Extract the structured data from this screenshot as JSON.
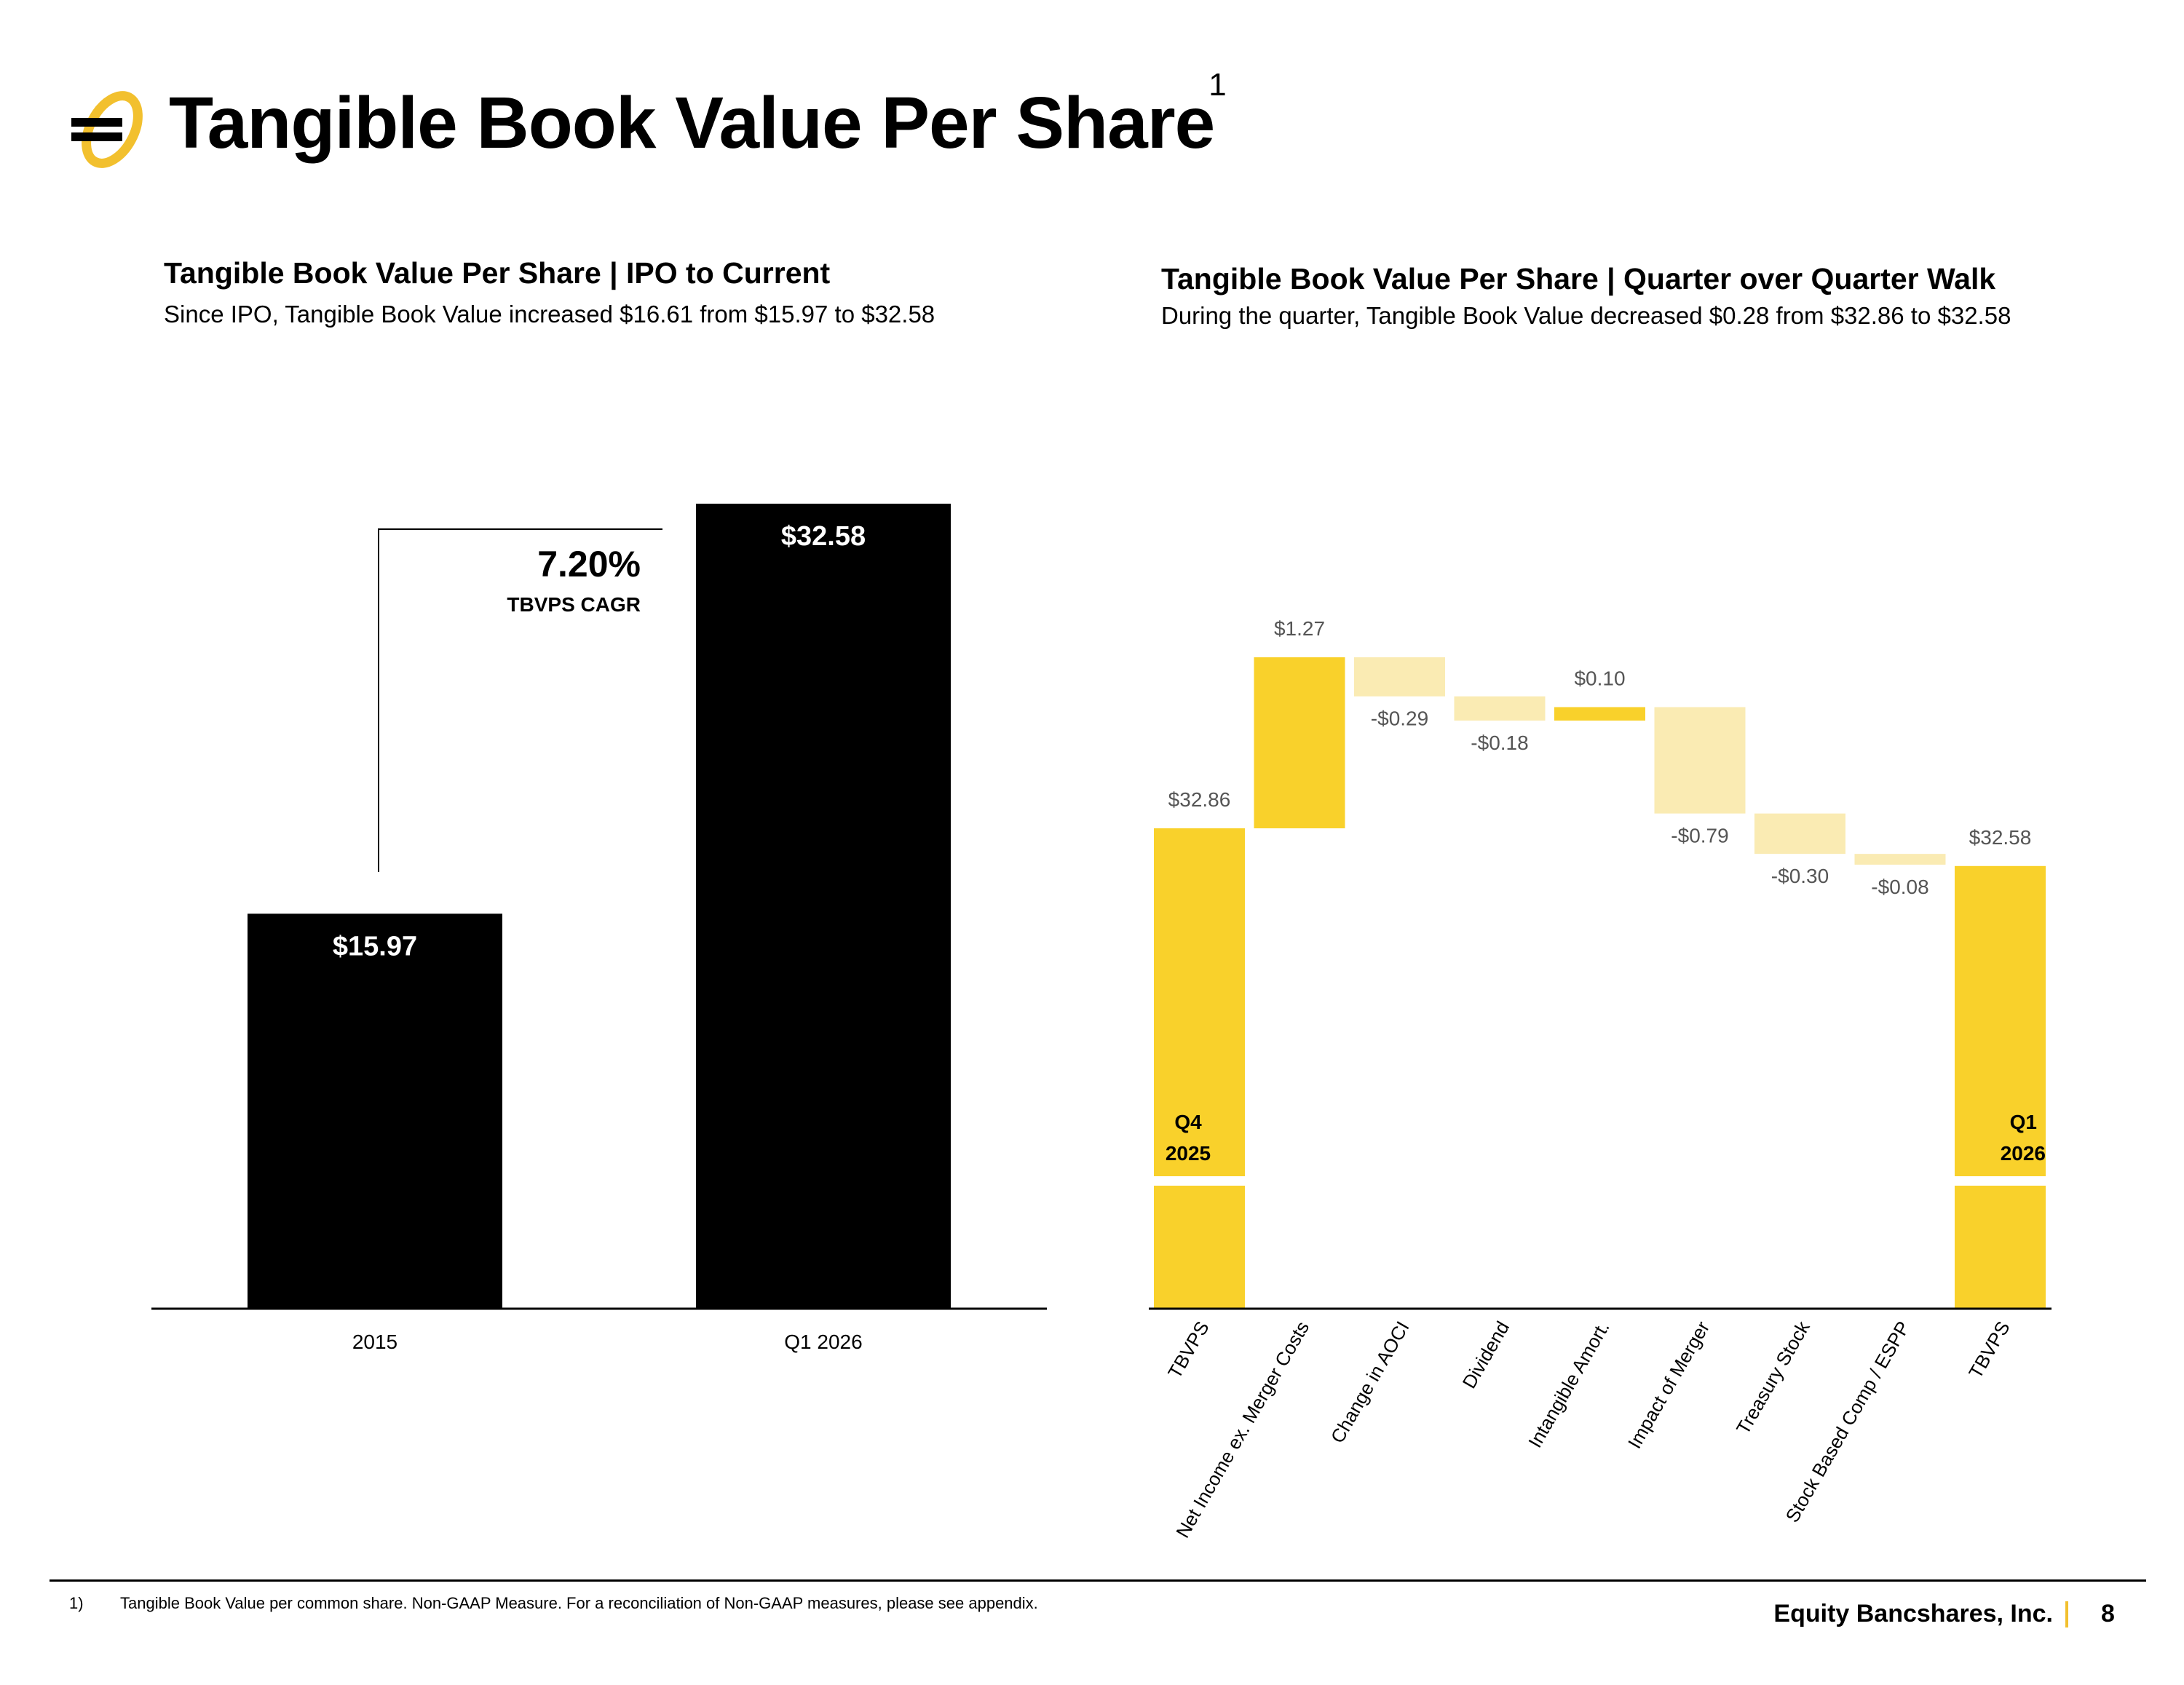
{
  "header": {
    "title": "Tangible Book Value Per Share",
    "title_sup": "1",
    "logo_icon": "equity-bank-logo-icon",
    "brand_color": "#F9D12B"
  },
  "left_chart": {
    "title": "Tangible Book Value Per Share | IPO to Current",
    "subtitle": "Since IPO, Tangible Book Value increased $16.61 from $15.97 to $32.58",
    "cagr_value": "7.20%",
    "cagr_label": "TBVPS CAGR"
  },
  "right_chart": {
    "title": "Tangible Book Value Per Share | Quarter over Quarter Walk",
    "subtitle": "During the quarter, Tangible Book Value decreased $0.28 from $32.86 to $32.58",
    "start_period": [
      "Q4",
      "2025"
    ],
    "end_period": [
      "Q1",
      "2026"
    ]
  },
  "chart_data": [
    {
      "type": "bar",
      "categories": [
        "2015",
        "Q1 2026"
      ],
      "values": [
        15.97,
        32.58
      ],
      "labels": [
        "$15.97",
        "$32.58"
      ],
      "bar_color": "#000000",
      "ylim": [
        0,
        32.58
      ]
    },
    {
      "type": "waterfall",
      "categories": [
        "TBVPS",
        "Net Income ex. Merger Costs",
        "Change in AOCI",
        "Dividend",
        "Intangible Amort.",
        "Impact of Merger",
        "Treasury Stock",
        "Stock Based Comp / ESPP",
        "TBVPS"
      ],
      "values": [
        32.86,
        1.27,
        -0.29,
        -0.18,
        0.1,
        -0.79,
        -0.3,
        -0.08,
        32.58
      ],
      "labels": [
        "$32.86",
        "$1.27",
        "-$0.29",
        "-$0.18",
        "$0.10",
        "-$0.79",
        "-$0.30",
        "-$0.08",
        "$32.58"
      ],
      "kinds": [
        "total",
        "delta",
        "delta",
        "delta",
        "delta",
        "delta",
        "delta",
        "delta",
        "total"
      ],
      "colors": {
        "total": "#F9D12B",
        "increase": "#F9D12B",
        "decrease": "#FAEBB3"
      },
      "axis_break": true
    }
  ],
  "footer": {
    "footnote_num": "1)",
    "footnote": "Tangible Book Value per common share. Non-GAAP Measure. For a reconciliation of Non-GAAP measures, please see appendix.",
    "company": "Equity Bancshares, Inc.",
    "page": "8"
  }
}
